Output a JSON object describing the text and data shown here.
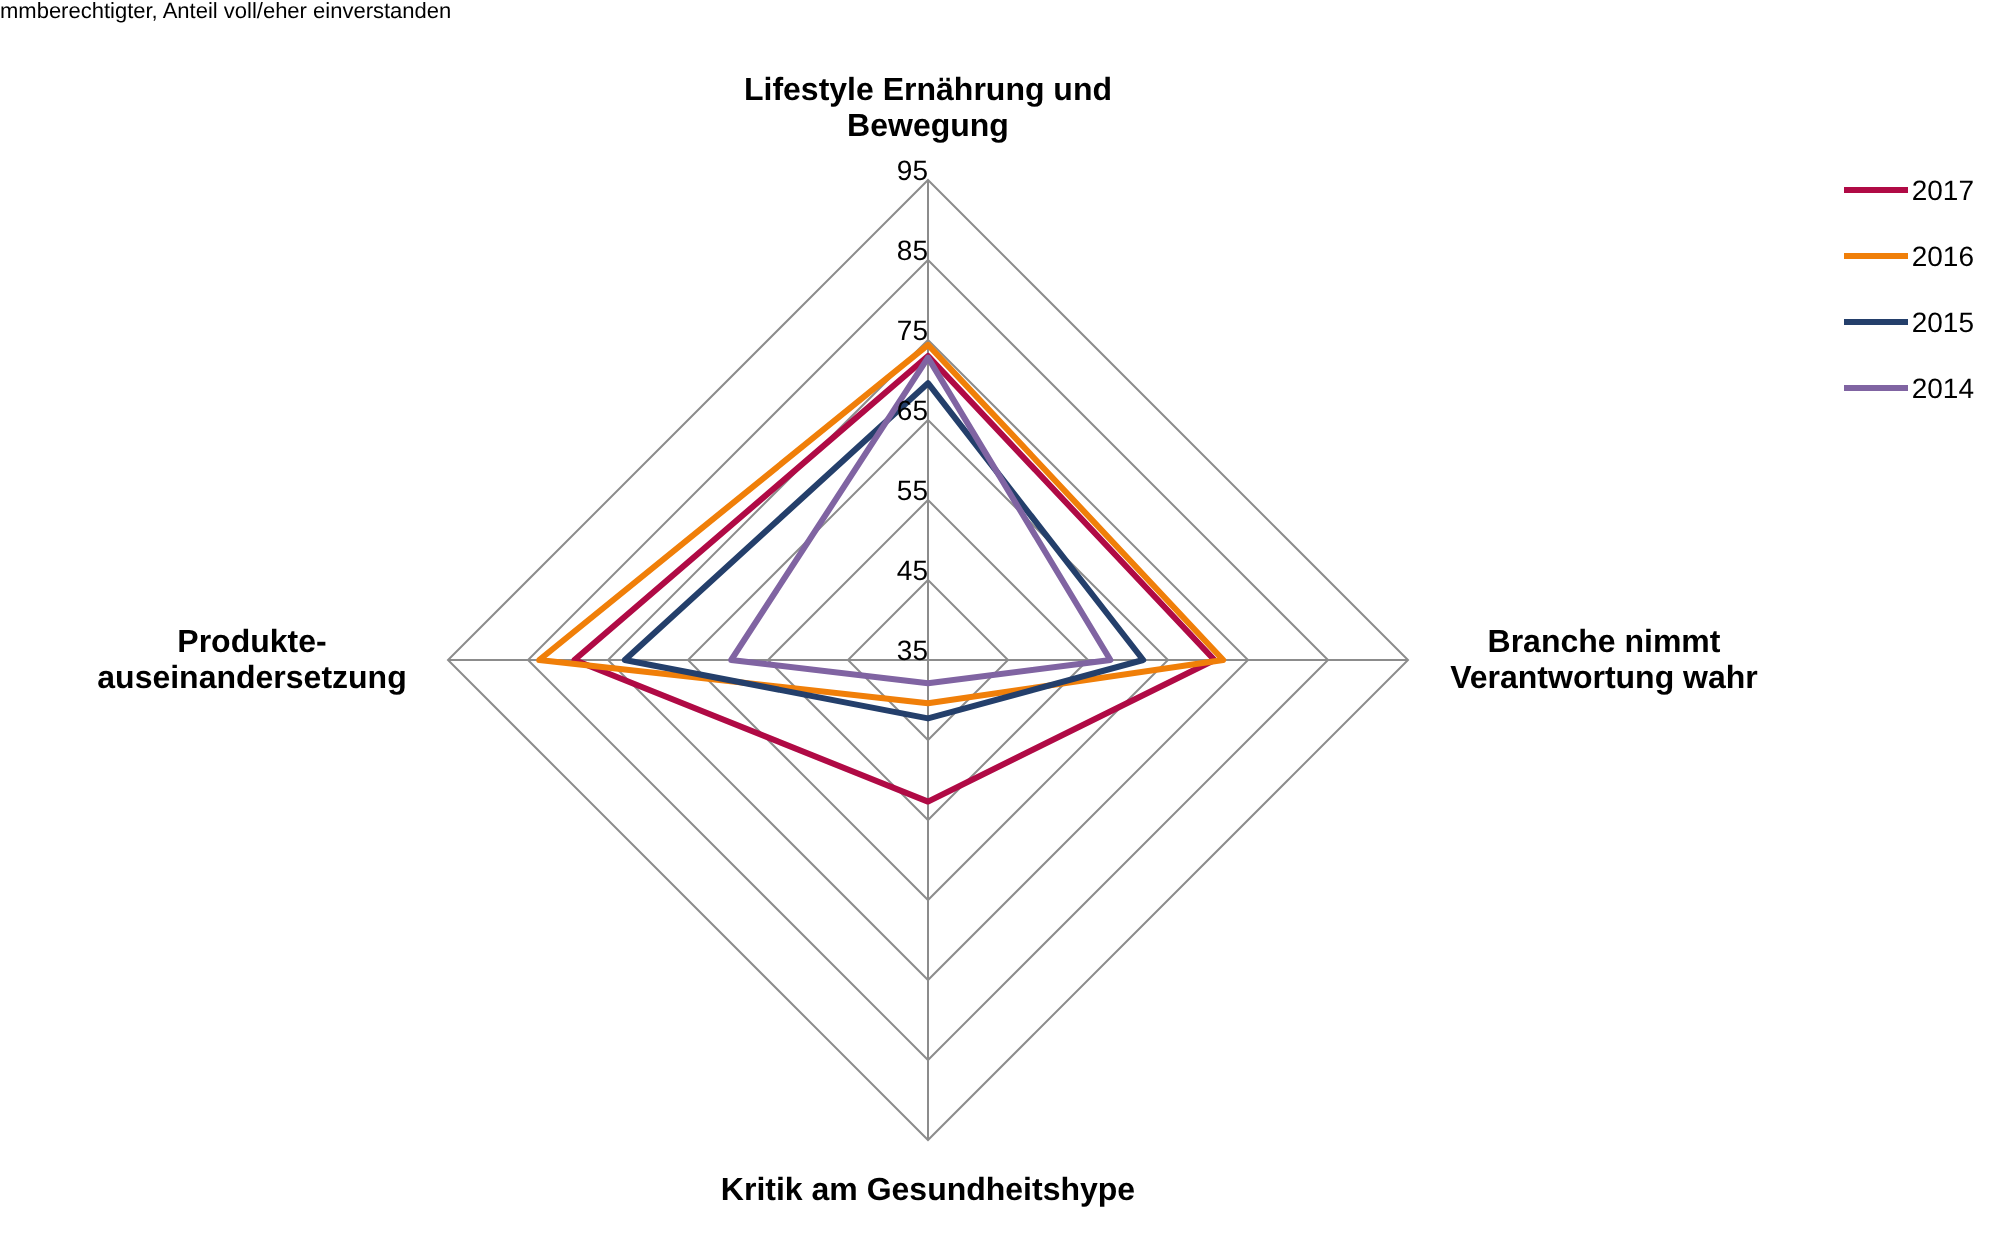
{
  "chart_data": {
    "type": "radar",
    "annotations": [
      "mmberechtigter, Anteil voll/eher einverstanden"
    ],
    "categories": [
      "Lifestyle Ernährung und\nBewegung",
      "Branche nimmt\nVerantwortung wahr",
      "Kritik am Gesundheitshype",
      "Produkte-\nauseinandersetzung"
    ],
    "series": [
      {
        "name": "2017",
        "color": "#b00a45",
        "values": [
          73,
          70.8,
          52.7,
          79.2
        ]
      },
      {
        "name": "2016",
        "color": "#f07f09",
        "values": [
          74.4,
          71.9,
          40.4,
          83.6
        ]
      },
      {
        "name": "2015",
        "color": "#243f6b",
        "values": [
          69.6,
          61.9,
          42.3,
          72.9
        ]
      },
      {
        "name": "2014",
        "color": "#8064a2",
        "values": [
          72.8,
          57.8,
          37.9,
          59.6
        ]
      }
    ],
    "ylim": [
      35,
      95
    ],
    "yticks": [
      35,
      45,
      55,
      65,
      75,
      85,
      95
    ],
    "grid": true,
    "legend": "top right",
    "marker": "none",
    "line_style": "solid"
  }
}
